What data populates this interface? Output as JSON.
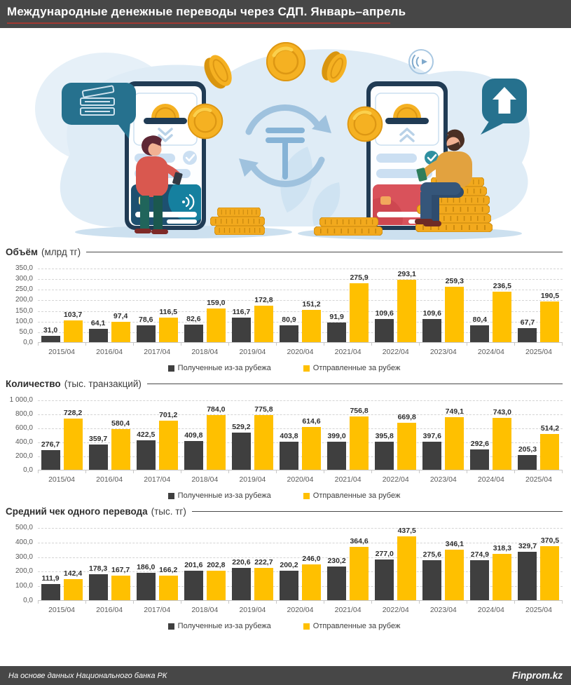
{
  "header": {
    "title": "Международные денежные переводы через СДП. Январь–апрель"
  },
  "footer": {
    "source": "На основе данных Национального банка РК",
    "brand": "Finprom.kz"
  },
  "legend": {
    "received": "Полученные из-за рубежа",
    "sent": "Отправленные за рубеж"
  },
  "colors": {
    "header_bg": "#474747",
    "footer_bg": "#474747",
    "title_underline": "#A03A32",
    "bar_dark": "#3F3F3F",
    "bar_yellow": "#FFC000",
    "teal": "#26718E",
    "gold": "#F5B122",
    "light_blue": "#DFECF6"
  },
  "categories": [
    "2015/04",
    "2016/04",
    "2017/04",
    "2018/04",
    "2019/04",
    "2020/04",
    "2021/04",
    "2022/04",
    "2023/04",
    "2024/04",
    "2025/04"
  ],
  "chart_data": [
    {
      "type": "bar",
      "title": "Объём",
      "unit": "(млрд тг)",
      "ylim": [
        0,
        350
      ],
      "ticks": [
        "350,0",
        "300,0",
        "250,0",
        "200,0",
        "150,0",
        "100,0",
        "50,0",
        "0,0"
      ],
      "categories": [
        "2015/04",
        "2016/04",
        "2017/04",
        "2018/04",
        "2019/04",
        "2020/04",
        "2021/04",
        "2022/04",
        "2023/04",
        "2024/04",
        "2025/04"
      ],
      "series": [
        {
          "name": "Полученные из-за рубежа",
          "values": [
            31.0,
            64.1,
            78.6,
            82.6,
            116.7,
            80.9,
            91.9,
            109.6,
            109.6,
            80.4,
            67.7
          ]
        },
        {
          "name": "Отправленные за рубеж",
          "values": [
            103.7,
            97.4,
            116.5,
            159.0,
            172.8,
            151.2,
            275.9,
            293.1,
            259.3,
            236.5,
            190.5
          ]
        }
      ],
      "grid": "dashed-horizontal",
      "legend_position": "bottom"
    },
    {
      "type": "bar",
      "title": "Количество",
      "unit": "(тыс. транзакций)",
      "ylim": [
        0,
        1000
      ],
      "ticks": [
        "1 000,0",
        "800,0",
        "600,0",
        "400,0",
        "200,0",
        "0,0"
      ],
      "categories": [
        "2015/04",
        "2016/04",
        "2017/04",
        "2018/04",
        "2019/04",
        "2020/04",
        "2021/04",
        "2022/04",
        "2023/04",
        "2024/04",
        "2025/04"
      ],
      "series": [
        {
          "name": "Полученные из-за рубежа",
          "values": [
            276.7,
            359.7,
            422.5,
            409.8,
            529.2,
            403.8,
            399.0,
            395.8,
            397.6,
            292.6,
            205.3
          ]
        },
        {
          "name": "Отправленные за рубеж",
          "values": [
            728.2,
            580.4,
            701.2,
            784.0,
            775.8,
            614.6,
            756.8,
            669.8,
            749.1,
            743.0,
            514.2
          ]
        }
      ],
      "grid": "dashed-horizontal",
      "legend_position": "bottom"
    },
    {
      "type": "bar",
      "title": "Средний чек одного перевода",
      "unit": "(тыс. тг)",
      "ylim": [
        0,
        500
      ],
      "ticks": [
        "500,0",
        "400,0",
        "300,0",
        "200,0",
        "100,0",
        "0,0"
      ],
      "categories": [
        "2015/04",
        "2016/04",
        "2017/04",
        "2018/04",
        "2019/04",
        "2020/04",
        "2021/04",
        "2022/04",
        "2023/04",
        "2024/04",
        "2025/04"
      ],
      "series": [
        {
          "name": "Полученные из-за рубежа",
          "values": [
            111.9,
            178.3,
            186.0,
            201.6,
            220.6,
            200.2,
            230.2,
            277.0,
            275.6,
            274.9,
            329.7
          ]
        },
        {
          "name": "Отправленные за рубеж",
          "values": [
            142.4,
            167.7,
            166.2,
            202.8,
            222.7,
            246.0,
            364.6,
            437.5,
            346.1,
            318.3,
            370.5
          ]
        }
      ],
      "grid": "dashed-horizontal",
      "legend_position": "bottom"
    }
  ]
}
